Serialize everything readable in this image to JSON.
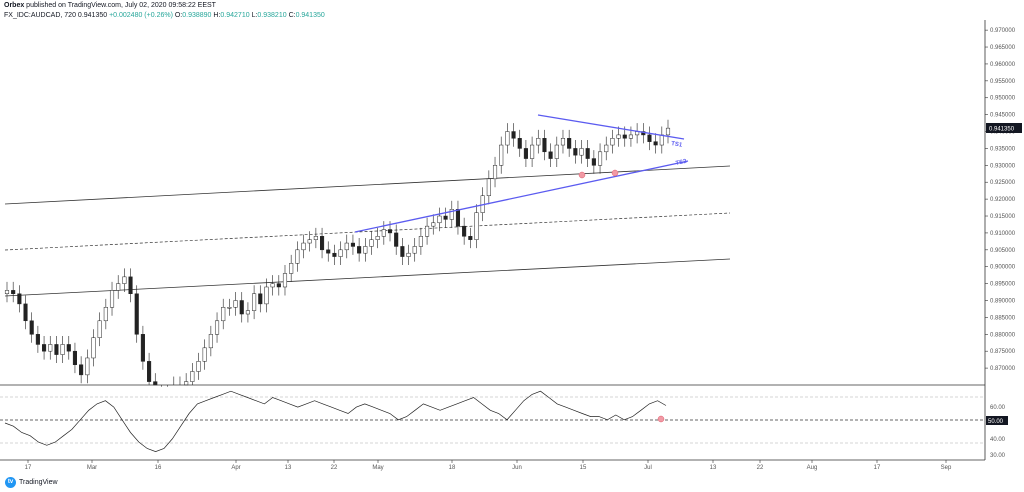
{
  "header": {
    "publisher": "Orbex",
    "publish_text": " published on TradingView.com, July 02, 2020 09:58:22 EEST"
  },
  "symbol": {
    "ticker": "FX_IDC:AUDCAD, 720",
    "last": "0.941350",
    "change": "+0.002480 (+0.26%)",
    "o_label": "O:",
    "o": "0.938890",
    "h_label": "H:",
    "h": "0.942710",
    "l_label": "L:",
    "l": "0.938210",
    "c_label": "C:",
    "c": "0.941350"
  },
  "chart_data": [
    {
      "type": "candlestick",
      "panel": "price",
      "price_axis_ticks": [
        "0.970000",
        "0.965000",
        "0.960000",
        "0.955000",
        "0.950000",
        "0.945000",
        "0.940000",
        "0.935000",
        "0.930000",
        "0.925000",
        "0.920000",
        "0.915000",
        "0.910000",
        "0.905000",
        "0.900000",
        "0.895000",
        "0.890000",
        "0.885000",
        "0.880000",
        "0.875000",
        "0.870000"
      ],
      "last_price_label": "0.941350",
      "ylim": [
        0.865,
        0.973
      ],
      "x_axis_ticks": [
        "17",
        "Mar",
        "16",
        "Apr",
        "13",
        "22",
        "May",
        "18",
        "Jun",
        "15",
        "Jul",
        "13",
        "22",
        "Aug",
        "17",
        "Sep"
      ],
      "closes": [
        0.893,
        0.892,
        0.889,
        0.884,
        0.88,
        0.877,
        0.875,
        0.877,
        0.874,
        0.877,
        0.875,
        0.871,
        0.868,
        0.873,
        0.879,
        0.884,
        0.888,
        0.893,
        0.895,
        0.897,
        0.892,
        0.88,
        0.872,
        0.866,
        0.862,
        0.86,
        0.862,
        0.865,
        0.864,
        0.866,
        0.869,
        0.872,
        0.876,
        0.88,
        0.884,
        0.888,
        0.888,
        0.89,
        0.886,
        0.887,
        0.892,
        0.889,
        0.894,
        0.895,
        0.894,
        0.898,
        0.901,
        0.905,
        0.907,
        0.908,
        0.909,
        0.905,
        0.904,
        0.903,
        0.905,
        0.907,
        0.906,
        0.904,
        0.906,
        0.908,
        0.909,
        0.911,
        0.91,
        0.906,
        0.903,
        0.904,
        0.906,
        0.909,
        0.912,
        0.913,
        0.915,
        0.914,
        0.917,
        0.912,
        0.909,
        0.908,
        0.916,
        0.921,
        0.926,
        0.93,
        0.936,
        0.94,
        0.938,
        0.935,
        0.932,
        0.936,
        0.938,
        0.934,
        0.932,
        0.936,
        0.938,
        0.935,
        0.933,
        0.935,
        0.932,
        0.93,
        0.934,
        0.936,
        0.938,
        0.939,
        0.938,
        0.939,
        0.94,
        0.939,
        0.937,
        0.936,
        0.939,
        0.941
      ],
      "trendlines": [
        {
          "label": "TS1"
        },
        {
          "label": "TS2"
        }
      ]
    },
    {
      "type": "line",
      "panel": "oscillator",
      "axis_ticks": [
        "60.00",
        "50.00",
        "40.00",
        "30.00"
      ],
      "level_label": "50.00",
      "ylim": [
        28,
        72
      ],
      "values": [
        50,
        48,
        44,
        42,
        38,
        36,
        38,
        42,
        46,
        52,
        58,
        62,
        64,
        60,
        52,
        44,
        38,
        34,
        32,
        34,
        40,
        48,
        56,
        62,
        64,
        66,
        68,
        70,
        68,
        66,
        64,
        62,
        66,
        64,
        62,
        60,
        62,
        64,
        62,
        60,
        58,
        56,
        60,
        62,
        60,
        58,
        56,
        52,
        54,
        58,
        62,
        60,
        58,
        60,
        62,
        64,
        66,
        62,
        58,
        56,
        52,
        58,
        64,
        68,
        70,
        66,
        62,
        60,
        58,
        56,
        54,
        54,
        52,
        55,
        52,
        54,
        58,
        62,
        64,
        61
      ]
    }
  ],
  "footer": {
    "brand": "TradingView",
    "logo_icon": "tradingview-logo-icon"
  }
}
